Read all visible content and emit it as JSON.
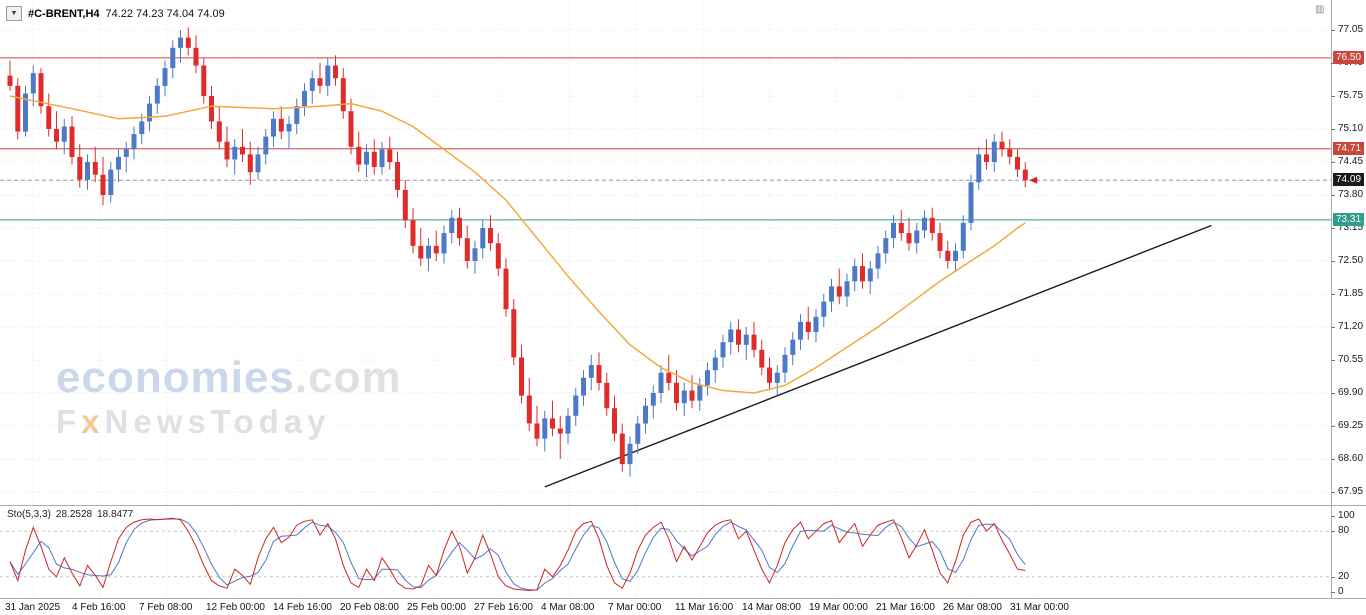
{
  "header": {
    "symbol": "#C-BRENT,H4",
    "ohlc": "74.22 74.23 74.04 74.09",
    "dropdown_icon": "▼"
  },
  "icons": {
    "scale_icon": "▥"
  },
  "watermark": {
    "line1_main": "economies",
    "line1_suffix": ".com",
    "line2_f": "F",
    "line2_x": "x",
    "line2_rest": "NewsToday"
  },
  "stoch_panel": {
    "label": "Sto(5,3,3)",
    "value_main": "28.2528",
    "value_signal": "18.8477"
  },
  "time_axis": {
    "labels": [
      "31 Jan 2025",
      "4 Feb 16:00",
      "7 Feb 08:00",
      "12 Feb 00:00",
      "14 Feb 16:00",
      "20 Feb 08:00",
      "25 Feb 00:00",
      "27 Feb 16:00",
      "4 Mar 08:00",
      "7 Mar 00:00",
      "11 Mar 16:00",
      "14 Mar 08:00",
      "19 Mar 00:00",
      "21 Mar 16:00",
      "26 Mar 08:00",
      "31 Mar 00:00"
    ]
  },
  "chart_data": [
    {
      "type": "candlestick",
      "title": "#C-BRENT,H4",
      "timeframe": "H4",
      "ylim": [
        67.6,
        77.45
      ],
      "y_ticks": [
        "77.05",
        "76.40",
        "75.75",
        "75.10",
        "74.45",
        "73.80",
        "73.15",
        "72.50",
        "71.85",
        "71.20",
        "70.55",
        "69.90",
        "69.25",
        "68.60",
        "67.95"
      ],
      "x_labels": [
        "31 Jan 2025",
        "4 Feb 16:00",
        "7 Feb 08:00",
        "12 Feb 00:00",
        "14 Feb 16:00",
        "20 Feb 08:00",
        "25 Feb 00:00",
        "27 Feb 16:00",
        "4 Mar 08:00",
        "7 Mar 00:00",
        "11 Mar 16:00",
        "14 Mar 08:00",
        "19 Mar 00:00",
        "21 Mar 16:00",
        "26 Mar 08:00",
        "31 Mar 00:00"
      ],
      "grid": true,
      "up_color": "#4d79c7",
      "down_color": "#e02b2b",
      "ma_color": "#f2a93b",
      "trendline_color": "#1a1a1a",
      "grid_color": "#e4e4e4",
      "last_price": 74.09,
      "candles": [
        [
          76.15,
          76.45,
          75.85,
          75.95
        ],
        [
          75.95,
          76.1,
          74.9,
          75.05
        ],
        [
          75.05,
          75.95,
          74.95,
          75.8
        ],
        [
          75.8,
          76.35,
          75.55,
          76.2
        ],
        [
          76.2,
          76.3,
          75.4,
          75.55
        ],
        [
          75.55,
          75.8,
          74.95,
          75.1
        ],
        [
          75.1,
          75.45,
          74.7,
          74.85
        ],
        [
          74.85,
          75.3,
          74.6,
          75.15
        ],
        [
          75.15,
          75.35,
          74.4,
          74.55
        ],
        [
          74.55,
          74.8,
          73.95,
          74.1
        ],
        [
          74.1,
          74.6,
          73.9,
          74.45
        ],
        [
          74.45,
          74.75,
          74.05,
          74.2
        ],
        [
          74.2,
          74.55,
          73.6,
          73.8
        ],
        [
          73.8,
          74.45,
          73.65,
          74.3
        ],
        [
          74.3,
          74.7,
          74.05,
          74.55
        ],
        [
          74.55,
          74.85,
          74.25,
          74.7
        ],
        [
          74.7,
          75.15,
          74.5,
          75.0
        ],
        [
          75.0,
          75.4,
          74.8,
          75.25
        ],
        [
          75.25,
          75.75,
          75.05,
          75.6
        ],
        [
          75.6,
          76.1,
          75.4,
          75.95
        ],
        [
          75.95,
          76.45,
          75.75,
          76.3
        ],
        [
          76.3,
          76.85,
          76.1,
          76.7
        ],
        [
          76.7,
          77.05,
          76.4,
          76.9
        ],
        [
          76.9,
          77.1,
          76.55,
          76.7
        ],
        [
          76.7,
          76.95,
          76.2,
          76.35
        ],
        [
          76.35,
          76.5,
          75.6,
          75.75
        ],
        [
          75.75,
          75.95,
          75.1,
          75.25
        ],
        [
          75.25,
          75.55,
          74.7,
          74.85
        ],
        [
          74.85,
          75.15,
          74.35,
          74.5
        ],
        [
          74.5,
          74.9,
          74.2,
          74.75
        ],
        [
          74.75,
          75.1,
          74.45,
          74.6
        ],
        [
          74.6,
          74.85,
          74.0,
          74.25
        ],
        [
          74.25,
          74.75,
          74.1,
          74.6
        ],
        [
          74.6,
          75.1,
          74.4,
          74.95
        ],
        [
          74.95,
          75.45,
          74.75,
          75.3
        ],
        [
          75.3,
          75.55,
          74.9,
          75.05
        ],
        [
          75.05,
          75.35,
          74.7,
          75.2
        ],
        [
          75.2,
          75.7,
          75.0,
          75.55
        ],
        [
          75.55,
          76.0,
          75.35,
          75.85
        ],
        [
          75.85,
          76.25,
          75.6,
          76.1
        ],
        [
          76.1,
          76.4,
          75.8,
          75.95
        ],
        [
          75.95,
          76.5,
          75.75,
          76.35
        ],
        [
          76.35,
          76.55,
          75.95,
          76.1
        ],
        [
          76.1,
          76.3,
          75.3,
          75.45
        ],
        [
          75.45,
          75.7,
          74.6,
          74.75
        ],
        [
          74.75,
          75.05,
          74.25,
          74.4
        ],
        [
          74.4,
          74.8,
          74.15,
          74.65
        ],
        [
          74.65,
          74.9,
          74.2,
          74.35
        ],
        [
          74.35,
          74.85,
          74.2,
          74.7
        ],
        [
          74.7,
          74.95,
          74.3,
          74.45
        ],
        [
          74.45,
          74.65,
          73.75,
          73.9
        ],
        [
          73.9,
          74.1,
          73.15,
          73.3
        ],
        [
          73.3,
          73.55,
          72.65,
          72.8
        ],
        [
          72.8,
          73.15,
          72.4,
          72.55
        ],
        [
          72.55,
          72.95,
          72.3,
          72.8
        ],
        [
          72.8,
          73.1,
          72.5,
          72.65
        ],
        [
          72.65,
          73.2,
          72.45,
          73.05
        ],
        [
          73.05,
          73.5,
          72.85,
          73.35
        ],
        [
          73.35,
          73.55,
          72.8,
          72.95
        ],
        [
          72.95,
          73.2,
          72.35,
          72.5
        ],
        [
          72.5,
          72.9,
          72.25,
          72.75
        ],
        [
          72.75,
          73.3,
          72.55,
          73.15
        ],
        [
          73.15,
          73.4,
          72.7,
          72.85
        ],
        [
          72.85,
          73.05,
          72.2,
          72.35
        ],
        [
          72.35,
          72.55,
          71.4,
          71.55
        ],
        [
          71.55,
          71.75,
          70.45,
          70.6
        ],
        [
          70.6,
          70.85,
          69.7,
          69.85
        ],
        [
          69.85,
          70.2,
          69.15,
          69.3
        ],
        [
          69.3,
          69.65,
          68.85,
          69.0
        ],
        [
          69.0,
          69.55,
          68.75,
          69.4
        ],
        [
          69.4,
          69.75,
          69.05,
          69.2
        ],
        [
          69.2,
          69.45,
          68.6,
          69.1
        ],
        [
          69.1,
          69.6,
          68.9,
          69.45
        ],
        [
          69.45,
          70.0,
          69.25,
          69.85
        ],
        [
          69.85,
          70.35,
          69.65,
          70.2
        ],
        [
          70.2,
          70.65,
          69.95,
          70.45
        ],
        [
          70.45,
          70.7,
          69.95,
          70.1
        ],
        [
          70.1,
          70.3,
          69.45,
          69.6
        ],
        [
          69.6,
          69.85,
          68.95,
          69.1
        ],
        [
          69.1,
          69.3,
          68.35,
          68.5
        ],
        [
          68.5,
          69.05,
          68.25,
          68.9
        ],
        [
          68.9,
          69.45,
          68.7,
          69.3
        ],
        [
          69.3,
          69.8,
          69.1,
          69.65
        ],
        [
          69.65,
          70.05,
          69.4,
          69.9
        ],
        [
          69.9,
          70.45,
          69.7,
          70.3
        ],
        [
          70.3,
          70.65,
          69.95,
          70.1
        ],
        [
          70.1,
          70.35,
          69.55,
          69.7
        ],
        [
          69.7,
          70.1,
          69.45,
          69.95
        ],
        [
          69.95,
          70.25,
          69.6,
          69.75
        ],
        [
          69.75,
          70.2,
          69.55,
          70.05
        ],
        [
          70.05,
          70.5,
          69.85,
          70.35
        ],
        [
          70.35,
          70.75,
          70.1,
          70.6
        ],
        [
          70.6,
          71.05,
          70.4,
          70.9
        ],
        [
          70.9,
          71.3,
          70.65,
          71.15
        ],
        [
          71.15,
          71.35,
          70.7,
          70.85
        ],
        [
          70.85,
          71.2,
          70.55,
          71.05
        ],
        [
          71.05,
          71.3,
          70.6,
          70.75
        ],
        [
          70.75,
          70.95,
          70.25,
          70.4
        ],
        [
          70.4,
          70.6,
          69.95,
          70.1
        ],
        [
          70.1,
          70.45,
          69.85,
          70.3
        ],
        [
          70.3,
          70.8,
          70.1,
          70.65
        ],
        [
          70.65,
          71.1,
          70.45,
          70.95
        ],
        [
          70.95,
          71.45,
          70.75,
          71.3
        ],
        [
          71.3,
          71.6,
          70.95,
          71.1
        ],
        [
          71.1,
          71.55,
          70.9,
          71.4
        ],
        [
          71.4,
          71.85,
          71.2,
          71.7
        ],
        [
          71.7,
          72.15,
          71.5,
          72.0
        ],
        [
          72.0,
          72.35,
          71.65,
          71.8
        ],
        [
          71.8,
          72.25,
          71.6,
          72.1
        ],
        [
          72.1,
          72.55,
          71.9,
          72.4
        ],
        [
          72.4,
          72.65,
          71.95,
          72.1
        ],
        [
          72.1,
          72.5,
          71.85,
          72.35
        ],
        [
          72.35,
          72.8,
          72.15,
          72.65
        ],
        [
          72.65,
          73.1,
          72.45,
          72.95
        ],
        [
          72.95,
          73.4,
          72.75,
          73.25
        ],
        [
          73.25,
          73.5,
          72.9,
          73.05
        ],
        [
          73.05,
          73.35,
          72.7,
          72.85
        ],
        [
          72.85,
          73.25,
          72.65,
          73.1
        ],
        [
          73.1,
          73.5,
          72.95,
          73.35
        ],
        [
          73.35,
          73.55,
          72.9,
          73.05
        ],
        [
          73.05,
          73.25,
          72.55,
          72.7
        ],
        [
          72.7,
          72.9,
          72.35,
          72.5
        ],
        [
          72.5,
          72.85,
          72.3,
          72.7
        ],
        [
          72.7,
          73.4,
          72.55,
          73.25
        ],
        [
          73.25,
          74.2,
          73.1,
          74.05
        ],
        [
          74.05,
          74.75,
          73.9,
          74.6
        ],
        [
          74.6,
          74.9,
          74.3,
          74.45
        ],
        [
          74.45,
          75.0,
          74.25,
          74.85
        ],
        [
          74.85,
          75.05,
          74.55,
          74.7
        ],
        [
          74.7,
          74.9,
          74.4,
          74.55
        ],
        [
          74.55,
          74.7,
          74.15,
          74.3
        ],
        [
          74.3,
          74.45,
          73.95,
          74.09
        ]
      ],
      "ma": {
        "name": "moving-average",
        "color": "#f2a93b",
        "keypoints": [
          [
            0,
            75.75
          ],
          [
            8,
            75.5
          ],
          [
            14,
            75.3
          ],
          [
            20,
            75.35
          ],
          [
            26,
            75.55
          ],
          [
            34,
            75.5
          ],
          [
            40,
            75.55
          ],
          [
            44,
            75.6
          ],
          [
            48,
            75.45
          ],
          [
            52,
            75.15
          ],
          [
            56,
            74.7
          ],
          [
            60,
            74.25
          ],
          [
            64,
            73.7
          ],
          [
            68,
            72.95
          ],
          [
            72,
            72.2
          ],
          [
            76,
            71.5
          ],
          [
            80,
            70.85
          ],
          [
            84,
            70.4
          ],
          [
            88,
            70.1
          ],
          [
            92,
            69.95
          ],
          [
            96,
            69.9
          ],
          [
            100,
            70.05
          ],
          [
            104,
            70.4
          ],
          [
            108,
            70.8
          ],
          [
            112,
            71.2
          ],
          [
            116,
            71.65
          ],
          [
            120,
            72.1
          ],
          [
            124,
            72.5
          ],
          [
            127,
            72.8
          ],
          [
            130,
            73.15
          ],
          [
            131,
            73.25
          ]
        ]
      },
      "trendline": {
        "from": [
          69,
          68.05
        ],
        "to": [
          155,
          73.2
        ]
      },
      "hlines": [
        {
          "price": 76.5,
          "label": "76.50",
          "color": "#c9473a",
          "dashed": false,
          "badge_bg": "#c9473a"
        },
        {
          "price": 74.71,
          "label": "74.71",
          "color": "#c9473a",
          "dashed": false,
          "badge_bg": "#c9473a"
        },
        {
          "price": 74.09,
          "label": "74.09",
          "color": "#999999",
          "dashed": true,
          "badge_bg": "#1b1b1b"
        },
        {
          "price": 73.31,
          "label": "73.31",
          "color": "#2f9e8e",
          "dashed": false,
          "badge_bg": "#2f9e8e"
        }
      ]
    },
    {
      "type": "line",
      "title": "Sto(5,3,3)",
      "ylim": [
        0,
        100
      ],
      "y_ticks": [
        "100",
        "80",
        "20",
        "0"
      ],
      "levels": [
        80,
        20
      ],
      "level_color": "#c8c8c8",
      "signal_smoothing": 3,
      "last_values": [
        28.2528,
        18.8477
      ],
      "series": [
        {
          "name": "stochastic-main",
          "color": "#cc2525",
          "values": [
            40,
            15,
            55,
            85,
            60,
            30,
            20,
            45,
            25,
            8,
            35,
            22,
            6,
            40,
            70,
            85,
            92,
            95,
            96,
            95,
            96,
            97,
            95,
            80,
            60,
            35,
            15,
            8,
            5,
            30,
            22,
            10,
            45,
            70,
            85,
            65,
            72,
            88,
            93,
            95,
            75,
            90,
            70,
            35,
            12,
            6,
            30,
            15,
            45,
            30,
            12,
            5,
            4,
            8,
            35,
            22,
            55,
            80,
            60,
            25,
            45,
            75,
            50,
            20,
            8,
            4,
            3,
            2,
            3,
            30,
            20,
            35,
            55,
            80,
            90,
            93,
            70,
            35,
            12,
            5,
            25,
            55,
            75,
            85,
            92,
            70,
            40,
            60,
            42,
            60,
            78,
            88,
            93,
            95,
            70,
            80,
            55,
            30,
            12,
            35,
            65,
            82,
            92,
            70,
            80,
            90,
            94,
            65,
            78,
            90,
            60,
            75,
            88,
            92,
            95,
            72,
            45,
            62,
            82,
            55,
            25,
            12,
            40,
            75,
            92,
            96,
            80,
            90,
            68,
            50,
            30,
            28.25
          ]
        },
        {
          "name": "stochastic-signal",
          "color": "#4d79c7",
          "derived": "3-period average of main"
        }
      ]
    }
  ]
}
